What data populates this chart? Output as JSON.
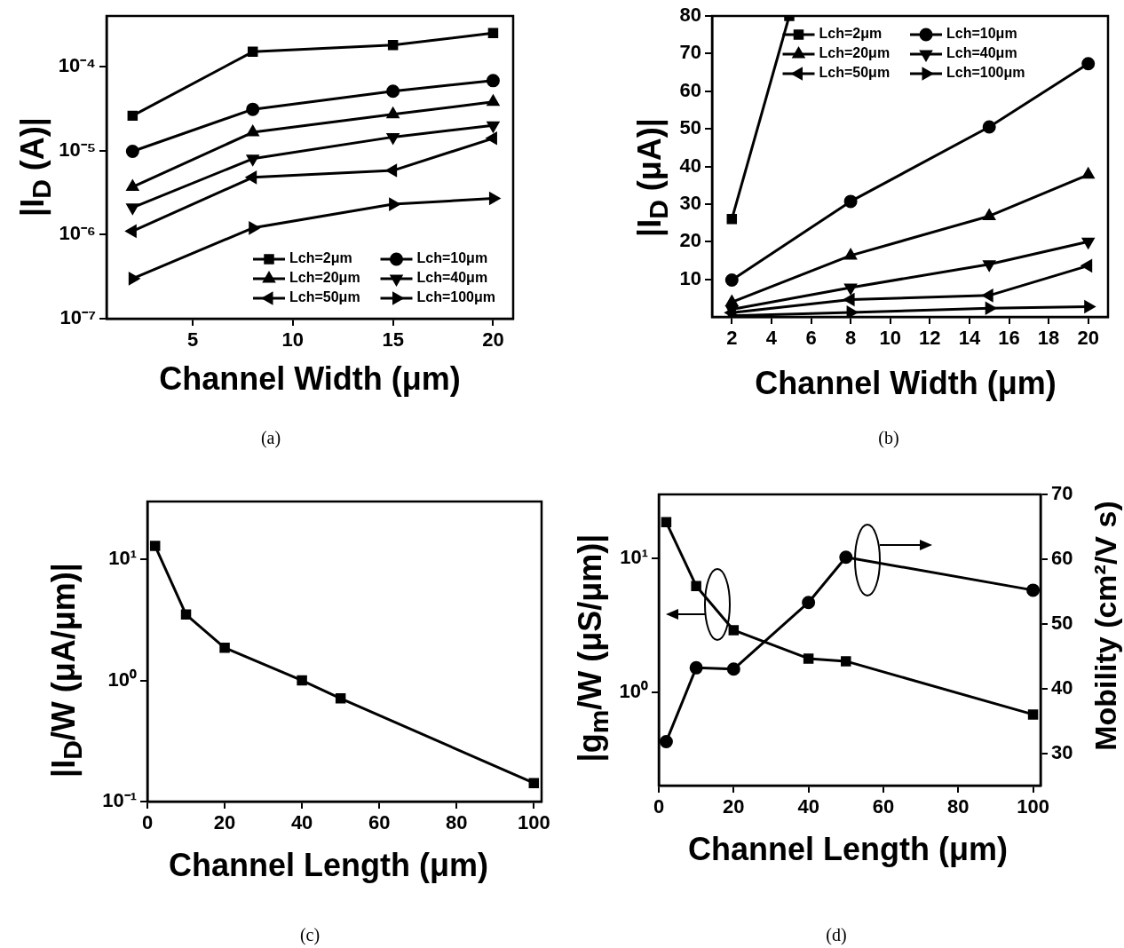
{
  "chart_data": [
    {
      "type": "line",
      "xlabel": "Channel Width (μm)",
      "ylabel": "|I$_{D}$ (A)|",
      "log": true,
      "x": [
        2,
        8,
        15,
        20
      ],
      "xlim": [
        0.7,
        21
      ],
      "xticks": [
        5,
        10,
        15,
        20
      ],
      "ylim": [
        1e-07,
        0.0004
      ],
      "yticks": [
        {
          "value": 1e-07,
          "label": "10⁻⁷"
        },
        {
          "value": 1e-06,
          "label": "10⁻⁶"
        },
        {
          "value": 1e-05,
          "label": "10⁻⁵"
        },
        {
          "value": 0.0001,
          "label": "10⁻⁴"
        }
      ],
      "legend": "bottom right",
      "annotations": [
        "(a)"
      ],
      "series": [
        {
          "name": "Lch=2μm",
          "color": "#000000",
          "marker": "square",
          "values": [
            2.6e-05,
            0.00015,
            0.00018,
            0.00025
          ]
        },
        {
          "name": "Lch=10μm",
          "color": "#000000",
          "marker": "circle",
          "values": [
            9.8e-06,
            3.1e-05,
            5.1e-05,
            6.8e-05
          ]
        },
        {
          "name": "Lch=20μm",
          "color": "#000000",
          "marker": "triangle",
          "values": [
            3.7e-06,
            1.65e-05,
            2.7e-05,
            3.8e-05
          ]
        },
        {
          "name": "Lch=40μm",
          "color": "#000000",
          "marker": "triangle-down",
          "values": [
            2.1e-06,
            8e-06,
            1.45e-05,
            2e-05
          ]
        },
        {
          "name": "Lch=50μm",
          "color": "#000000",
          "marker": "triangle-left",
          "values": [
            1.1e-06,
            4.8e-06,
            5.8e-06,
            1.4e-05
          ]
        },
        {
          "name": "Lch=100μm",
          "color": "#000000",
          "marker": "triangle-right",
          "values": [
            3e-07,
            1.2e-06,
            2.3e-06,
            2.7e-06
          ]
        }
      ]
    },
    {
      "type": "line",
      "xlabel": "Channel Width (μm)",
      "ylabel": "|I$_{D}$ (μA)|",
      "x": [
        2,
        8,
        15,
        20
      ],
      "xlim": [
        1,
        21
      ],
      "xticks": [
        2,
        4,
        6,
        8,
        10,
        12,
        14,
        16,
        18,
        20
      ],
      "ylim": [
        0,
        80
      ],
      "yticks": [
        10,
        20,
        30,
        40,
        50,
        60,
        70,
        80
      ],
      "legend": "top",
      "annotations": [
        "(b)"
      ],
      "series": [
        {
          "name": "Lch=2μm",
          "color": "#000000",
          "marker": "square",
          "x": [
            2,
            4.9
          ],
          "values": [
            26,
            80
          ]
        },
        {
          "name": "Lch=10μm",
          "color": "#000000",
          "marker": "circle",
          "values": [
            9.8,
            30.7,
            50.5,
            67.3
          ]
        },
        {
          "name": "Lch=20μm",
          "color": "#000000",
          "marker": "triangle",
          "values": [
            3.9,
            16.3,
            26.8,
            37.8
          ]
        },
        {
          "name": "Lch=40μm",
          "color": "#000000",
          "marker": "triangle-down",
          "values": [
            2.0,
            7.8,
            14.0,
            20.0
          ]
        },
        {
          "name": "Lch=50μm",
          "color": "#000000",
          "marker": "triangle-left",
          "values": [
            1.1,
            4.6,
            5.7,
            13.6
          ]
        },
        {
          "name": "Lch=100μm",
          "color": "#000000",
          "marker": "triangle-right",
          "values": [
            0.3,
            1.2,
            2.3,
            2.7
          ]
        }
      ]
    },
    {
      "type": "line",
      "xlabel": "Channel Length (μm)",
      "ylabel": "|I$_{D}$/W (μA/μm)|",
      "log": true,
      "x": [
        2,
        10,
        20,
        40,
        50,
        100
      ],
      "xlim": [
        0,
        102
      ],
      "xticks": [
        0,
        20,
        40,
        60,
        80,
        100
      ],
      "ylim": [
        0.1,
        30
      ],
      "yticks": [
        {
          "value": 0.1,
          "label": "10⁻¹"
        },
        {
          "value": 1,
          "label": "10⁰"
        },
        {
          "value": 10,
          "label": "10¹"
        }
      ],
      "annotations": [
        "(c)"
      ],
      "series": [
        {
          "color": "#000000",
          "marker": "square",
          "values": [
            12.9,
            3.5,
            1.86,
            1.0,
            0.71,
            0.142
          ]
        }
      ]
    },
    {
      "type": "line",
      "xlabel": "Channel Length (μm)",
      "ylabel": "|g$_{m}$/W (μS/μm)|",
      "y2label": "Mobility (cm²/V s)",
      "log": "y",
      "x": [
        2,
        10,
        20,
        40,
        50,
        100
      ],
      "xlim": [
        0,
        102
      ],
      "xticks": [
        0,
        20,
        40,
        60,
        80,
        100
      ],
      "ylim": [
        0.2,
        30
      ],
      "yticks": [
        {
          "value": 1,
          "label": "10⁰"
        },
        {
          "value": 10,
          "label": "10¹"
        }
      ],
      "y2lim": [
        25,
        70
      ],
      "y2ticks": [
        30,
        40,
        50,
        60,
        70
      ],
      "annotations": [
        "(d)"
      ],
      "series": [
        {
          "color": "#000000",
          "marker": "square",
          "values": [
            18.6,
            6.2,
            2.9,
            1.78,
            1.7,
            0.68
          ]
        },
        {
          "color": "#000000",
          "marker": "circle",
          "axis": "y2",
          "values": [
            31.8,
            43.2,
            43.0,
            53.3,
            60.3,
            55.2
          ]
        }
      ]
    }
  ]
}
